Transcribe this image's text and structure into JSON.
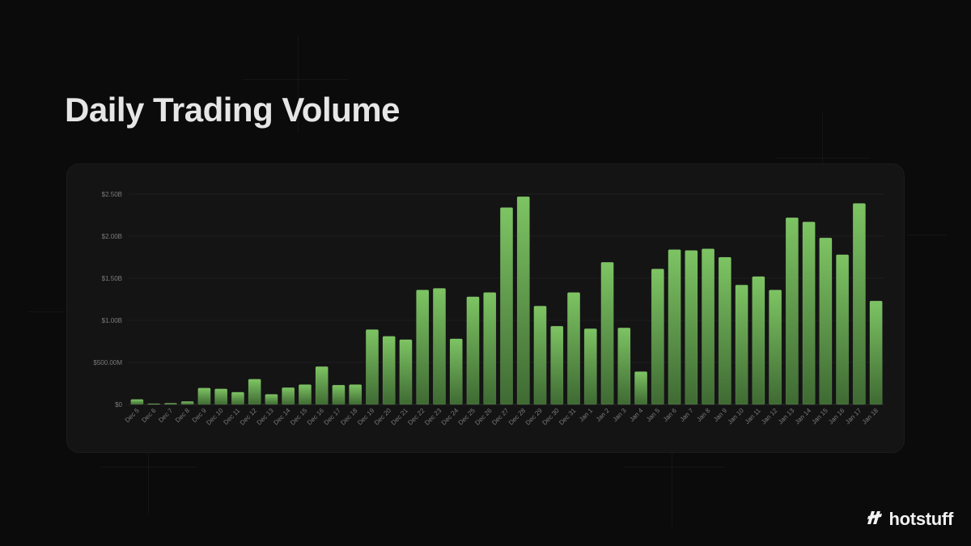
{
  "page": {
    "title": "Daily Trading Volume"
  },
  "brand": {
    "name": "hotstuff",
    "icon": "hotstuff-logo-icon"
  },
  "colors": {
    "background": "#0b0b0b",
    "card": "#141414",
    "bar_top": "#7dc463",
    "bar_bottom": "#3f6a33",
    "title": "#e6e6e6"
  },
  "chart_data": {
    "type": "bar",
    "title": "",
    "xlabel": "",
    "ylabel": "",
    "ylim": [
      0,
      2500000000
    ],
    "yticks": [
      0,
      500000000,
      1000000000,
      1500000000,
      2000000000,
      2500000000
    ],
    "ytick_labels": [
      "$0",
      "$500.00M",
      "$1.00B",
      "$1.50B",
      "$2.00B",
      "$2.50B"
    ],
    "grid": true,
    "legend": "none",
    "categories": [
      "Dec 5",
      "Dec 6",
      "Dec 7",
      "Dec 8",
      "Dec 9",
      "Dec 10",
      "Dec 11",
      "Dec 12",
      "Dec 13",
      "Dec 14",
      "Dec 15",
      "Dec 16",
      "Dec 17",
      "Dec 18",
      "Dec 19",
      "Dec 20",
      "Dec 21",
      "Dec 22",
      "Dec 23",
      "Dec 24",
      "Dec 25",
      "Dec 26",
      "Dec 27",
      "Dec 28",
      "Dec 29",
      "Dec 30",
      "Dec 31",
      "Jan 1",
      "Jan 2",
      "Jan 3",
      "Jan 4",
      "Jan 5",
      "Jan 6",
      "Jan 7",
      "Jan 8",
      "Jan 9",
      "Jan 10",
      "Jan 11",
      "Jan 12",
      "Jan 13",
      "Jan 14",
      "Jan 15",
      "Jan 16",
      "Jan 17",
      "Jan 18"
    ],
    "values": [
      60000000,
      8000000,
      15000000,
      35000000,
      195000000,
      185000000,
      145000000,
      300000000,
      120000000,
      200000000,
      235000000,
      450000000,
      230000000,
      235000000,
      890000000,
      810000000,
      770000000,
      1360000000,
      1380000000,
      780000000,
      1280000000,
      1330000000,
      2340000000,
      2470000000,
      1170000000,
      930000000,
      1330000000,
      900000000,
      1690000000,
      910000000,
      390000000,
      1610000000,
      1840000000,
      1830000000,
      1850000000,
      1750000000,
      1420000000,
      1520000000,
      1360000000,
      2220000000,
      2170000000,
      1980000000,
      1780000000,
      2390000000,
      1230000000
    ]
  }
}
